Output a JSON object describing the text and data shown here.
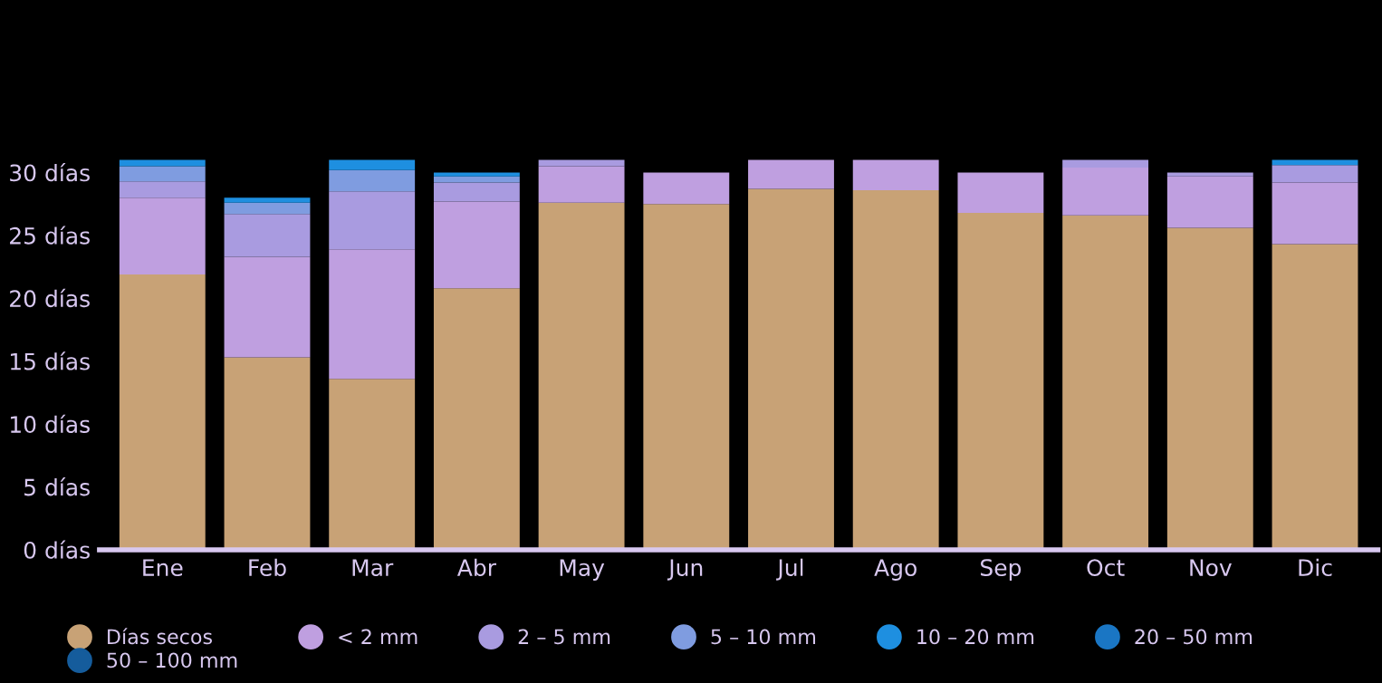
{
  "chart_data": {
    "type": "bar",
    "stacked": true,
    "categories": [
      "Ene",
      "Feb",
      "Mar",
      "Abr",
      "May",
      "Jun",
      "Jul",
      "Ago",
      "Sep",
      "Oct",
      "Nov",
      "Dic"
    ],
    "series": [
      {
        "name": "Días secos",
        "color": "#c8a276",
        "values": [
          21.9,
          15.3,
          13.6,
          20.8,
          27.6,
          27.5,
          28.7,
          28.6,
          26.8,
          26.6,
          25.6,
          24.3
        ]
      },
      {
        "name": "< 2 mm",
        "color": "#bf9fe0",
        "values": [
          6.1,
          8.0,
          10.3,
          6.9,
          2.9,
          2.5,
          2.3,
          2.4,
          3.2,
          3.8,
          4.1,
          4.9
        ]
      },
      {
        "name": "2 – 5 mm",
        "color": "#a99be0",
        "values": [
          1.3,
          3.4,
          4.6,
          1.5,
          0.5,
          0,
          0,
          0,
          0,
          0.6,
          0.3,
          1.4
        ]
      },
      {
        "name": "5 – 10 mm",
        "color": "#7f9ce0",
        "values": [
          1.2,
          0.9,
          1.7,
          0.5,
          0,
          0,
          0,
          0,
          0,
          0,
          0,
          0
        ]
      },
      {
        "name": "10 – 20 mm",
        "color": "#1e8fe0",
        "values": [
          0.5,
          0.4,
          0.8,
          0.3,
          0,
          0,
          0,
          0,
          0,
          0,
          0,
          0.4
        ]
      },
      {
        "name": "20 – 50 mm",
        "color": "#1a76c4",
        "values": [
          0,
          0,
          0,
          0,
          0,
          0,
          0,
          0,
          0,
          0,
          0,
          0
        ]
      },
      {
        "name": "50 – 100 mm",
        "color": "#155c9c",
        "values": [
          0,
          0,
          0,
          0,
          0,
          0,
          0,
          0,
          0,
          0,
          0,
          0
        ]
      }
    ],
    "ylim": [
      0,
      31.5
    ],
    "yticks": [
      {
        "value": 0,
        "label": "0 días"
      },
      {
        "value": 5,
        "label": "5 días"
      },
      {
        "value": 10,
        "label": "10 días"
      },
      {
        "value": 15,
        "label": "15 días"
      },
      {
        "value": 20,
        "label": "20 días"
      },
      {
        "value": 25,
        "label": "25 días"
      },
      {
        "value": 30,
        "label": "30 días"
      }
    ],
    "grid": false,
    "legend": "bottom",
    "marker": "circle"
  }
}
